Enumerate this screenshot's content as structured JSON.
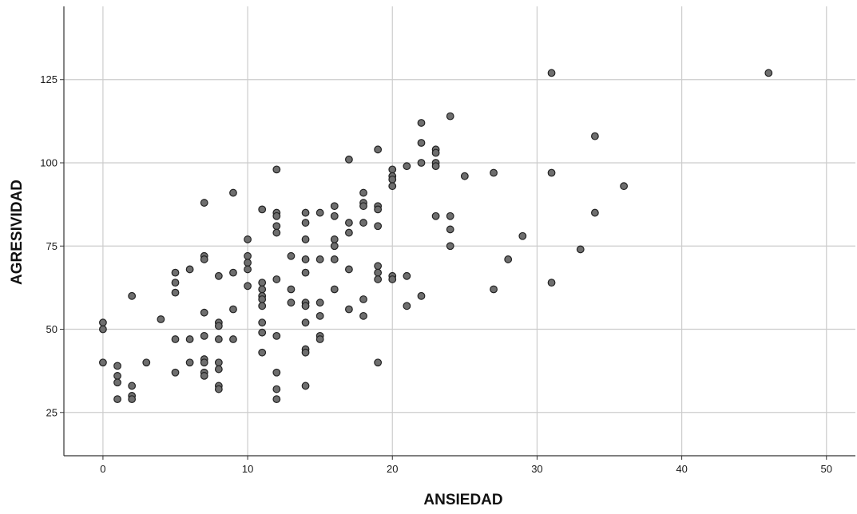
{
  "chart_data": {
    "type": "scatter",
    "title": "",
    "xlabel": "ANSIEDAD",
    "ylabel": "AGRESIVIDAD",
    "xlim": [
      -2.7,
      52
    ],
    "ylim": [
      12,
      147
    ],
    "xticks": [
      0,
      10,
      20,
      30,
      40,
      50
    ],
    "xtick_labels": [
      "0",
      "10",
      "20",
      "30",
      "40",
      "50"
    ],
    "yticks": [
      25,
      50,
      75,
      100,
      125
    ],
    "ytick_labels": [
      "25",
      "50",
      "75",
      "100",
      "125"
    ],
    "grid": true,
    "legend": "none",
    "marker_color": "#6e6e6e",
    "marker_edge_color": "#222222",
    "grid_color": "#cccccc",
    "points": [
      [
        0,
        52
      ],
      [
        0,
        50
      ],
      [
        0,
        40
      ],
      [
        1,
        39
      ],
      [
        1,
        36
      ],
      [
        1,
        34
      ],
      [
        1,
        29
      ],
      [
        2,
        60
      ],
      [
        2,
        33
      ],
      [
        2,
        30
      ],
      [
        2,
        29
      ],
      [
        3,
        40
      ],
      [
        4,
        53
      ],
      [
        5,
        67
      ],
      [
        5,
        64
      ],
      [
        5,
        61
      ],
      [
        5,
        47
      ],
      [
        5,
        37
      ],
      [
        6,
        68
      ],
      [
        6,
        47
      ],
      [
        6,
        40
      ],
      [
        7,
        88
      ],
      [
        7,
        72
      ],
      [
        7,
        71
      ],
      [
        7,
        55
      ],
      [
        7,
        48
      ],
      [
        7,
        41
      ],
      [
        7,
        40
      ],
      [
        7,
        37
      ],
      [
        7,
        36
      ],
      [
        8,
        66
      ],
      [
        8,
        52
      ],
      [
        8,
        51
      ],
      [
        8,
        47
      ],
      [
        8,
        40
      ],
      [
        8,
        38
      ],
      [
        8,
        33
      ],
      [
        8,
        32
      ],
      [
        9,
        91
      ],
      [
        9,
        67
      ],
      [
        9,
        56
      ],
      [
        9,
        47
      ],
      [
        10,
        77
      ],
      [
        10,
        72
      ],
      [
        10,
        70
      ],
      [
        10,
        68
      ],
      [
        10,
        63
      ],
      [
        11,
        86
      ],
      [
        11,
        64
      ],
      [
        11,
        62
      ],
      [
        11,
        60
      ],
      [
        11,
        59
      ],
      [
        11,
        57
      ],
      [
        11,
        52
      ],
      [
        11,
        49
      ],
      [
        11,
        43
      ],
      [
        12,
        98
      ],
      [
        12,
        85
      ],
      [
        12,
        84
      ],
      [
        12,
        81
      ],
      [
        12,
        79
      ],
      [
        12,
        65
      ],
      [
        12,
        48
      ],
      [
        12,
        37
      ],
      [
        12,
        32
      ],
      [
        12,
        29
      ],
      [
        13,
        72
      ],
      [
        13,
        62
      ],
      [
        13,
        58
      ],
      [
        14,
        85
      ],
      [
        14,
        82
      ],
      [
        14,
        77
      ],
      [
        14,
        71
      ],
      [
        14,
        67
      ],
      [
        14,
        58
      ],
      [
        14,
        57
      ],
      [
        14,
        52
      ],
      [
        14,
        44
      ],
      [
        14,
        43
      ],
      [
        14,
        33
      ],
      [
        15,
        85
      ],
      [
        15,
        71
      ],
      [
        15,
        58
      ],
      [
        15,
        54
      ],
      [
        15,
        48
      ],
      [
        15,
        47
      ],
      [
        16,
        87
      ],
      [
        16,
        84
      ],
      [
        16,
        77
      ],
      [
        16,
        75
      ],
      [
        16,
        71
      ],
      [
        16,
        62
      ],
      [
        17,
        101
      ],
      [
        17,
        82
      ],
      [
        17,
        79
      ],
      [
        17,
        68
      ],
      [
        17,
        56
      ],
      [
        18,
        91
      ],
      [
        18,
        88
      ],
      [
        18,
        87
      ],
      [
        18,
        82
      ],
      [
        18,
        59
      ],
      [
        18,
        54
      ],
      [
        19,
        104
      ],
      [
        19,
        87
      ],
      [
        19,
        86
      ],
      [
        19,
        81
      ],
      [
        19,
        69
      ],
      [
        19,
        67
      ],
      [
        19,
        65
      ],
      [
        19,
        40
      ],
      [
        20,
        98
      ],
      [
        20,
        96
      ],
      [
        20,
        95
      ],
      [
        20,
        93
      ],
      [
        20,
        66
      ],
      [
        20,
        65
      ],
      [
        21,
        99
      ],
      [
        21,
        66
      ],
      [
        21,
        57
      ],
      [
        22,
        112
      ],
      [
        22,
        106
      ],
      [
        22,
        100
      ],
      [
        22,
        60
      ],
      [
        23,
        104
      ],
      [
        23,
        103
      ],
      [
        23,
        100
      ],
      [
        23,
        99
      ],
      [
        23,
        84
      ],
      [
        24,
        114
      ],
      [
        24,
        84
      ],
      [
        24,
        80
      ],
      [
        24,
        75
      ],
      [
        25,
        96
      ],
      [
        27,
        97
      ],
      [
        27,
        62
      ],
      [
        28,
        71
      ],
      [
        29,
        78
      ],
      [
        31,
        127
      ],
      [
        31,
        97
      ],
      [
        31,
        64
      ],
      [
        33,
        74
      ],
      [
        34,
        108
      ],
      [
        34,
        85
      ],
      [
        36,
        93
      ],
      [
        46,
        127
      ]
    ]
  }
}
